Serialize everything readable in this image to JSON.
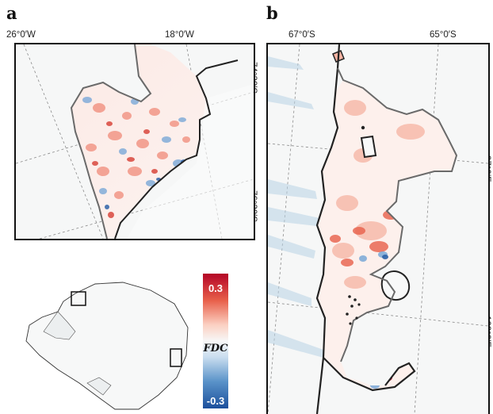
{
  "panels": {
    "a": {
      "label": "a",
      "lon_labels": [
        "26°0′W",
        "18°0′W"
      ],
      "lat_labels": [
        "74°30′S",
        "76°30′S"
      ]
    },
    "b": {
      "label": "b",
      "lat_labels": [
        "67°0′S",
        "65°0′S"
      ],
      "lon_labels": [
        "97°0′E",
        "102°0′E"
      ]
    }
  },
  "colorbar": {
    "title": "FDC",
    "max_label": "0.3",
    "min_label": "-0.3",
    "colors": {
      "max": "#b40426",
      "mid": "#f7f7f7",
      "min": "#1b4f9c"
    }
  },
  "colors": {
    "frame": "#111111",
    "grounding_line": "#222222",
    "ice_front": "#6a6a6a",
    "graticule": "#8a8a8a"
  }
}
